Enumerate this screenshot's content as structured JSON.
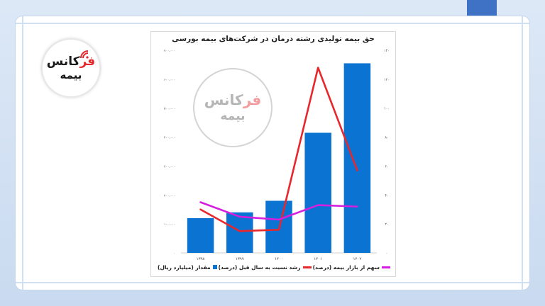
{
  "brand": {
    "logo_part1": "فر",
    "logo_part2": "کانس",
    "logo_bottom": "بیمه",
    "accent": "#e3262c"
  },
  "chart_data": {
    "type": "bar",
    "title": "حق بیمه تولیدی رشته درمان در شرکت‌های بیمه بورسی",
    "categories": [
      "۱۳۹۸",
      "۱۳۹۹",
      "۱۴۰۰",
      "۱۴۰۱",
      "۱۴۰۲"
    ],
    "left_axis": {
      "ylim": [
        0,
        700000
      ],
      "ticks": [
        "۰",
        "۱۰۰،۰۰۰",
        "۲۰۰،۰۰۰",
        "۳۰۰،۰۰۰",
        "۴۰۰،۰۰۰",
        "۵۰۰،۰۰۰",
        "۶۰۰،۰۰۰",
        "۷۰۰،۰۰۰"
      ]
    },
    "right_axis": {
      "ylim": [
        0,
        140
      ],
      "ticks": [
        "۰",
        "۲۰",
        "۴۰",
        "۶۰",
        "۸۰",
        "۱۰۰",
        "۱۲۰",
        "۱۴۰"
      ]
    },
    "series": [
      {
        "name": "مقدار (میلیارد ریال)",
        "type": "bar",
        "axis": "left",
        "color": "#0b74d3",
        "values": [
          120000,
          140000,
          180000,
          415000,
          655000
        ]
      },
      {
        "name": "رشد نسبت به سال قبل (درصد)",
        "type": "line",
        "axis": "right",
        "color": "#e8262b",
        "values": [
          30,
          15,
          16,
          128,
          57
        ]
      },
      {
        "name": "سهم از بازار بیمه (درصد)",
        "type": "line",
        "axis": "right",
        "color": "#d41fe0",
        "values": [
          35,
          25,
          23,
          33,
          32
        ]
      }
    ],
    "grid": false,
    "legend_position": "bottom"
  }
}
